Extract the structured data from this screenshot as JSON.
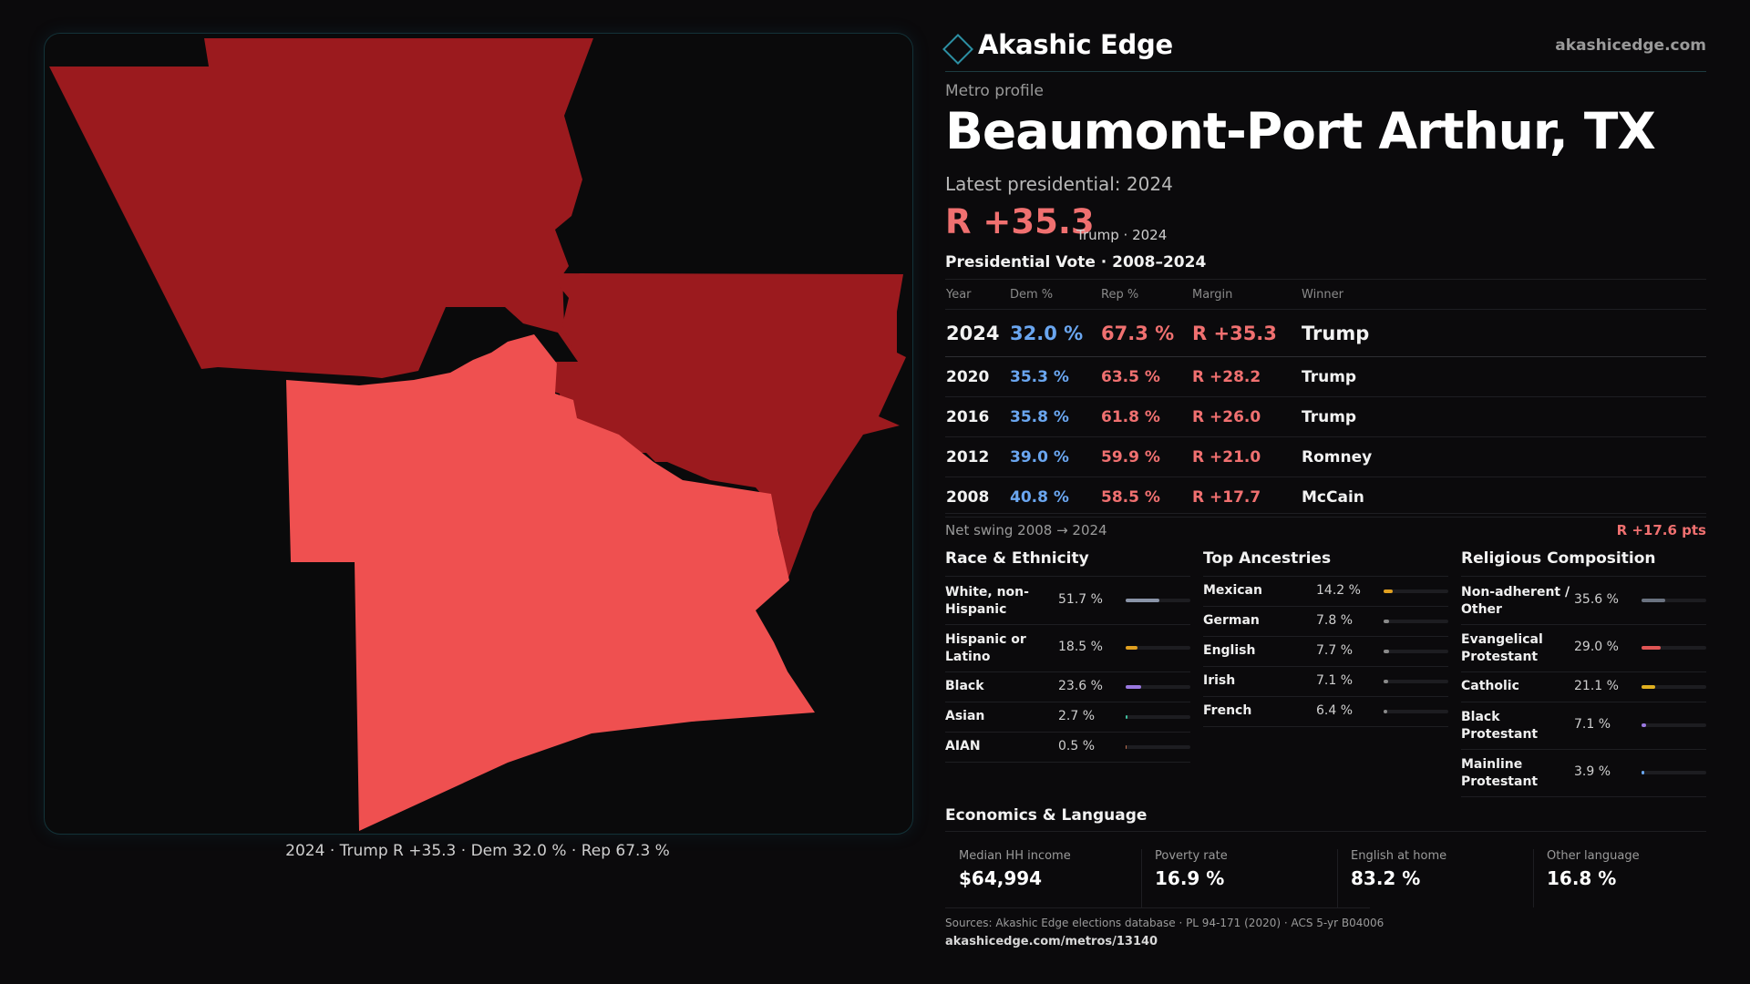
{
  "caption": "2024 · Trump R +35.3 · Dem 32.0 % · Rep 67.3 %",
  "map": {
    "colors": {
      "strong_rep": "#9b1a1e",
      "lean_rep": "#ef5050",
      "background": "#0a0a0b"
    },
    "regions": [
      {
        "name": "county-north-west",
        "shade": "strong_rep"
      },
      {
        "name": "county-east",
        "shade": "strong_rep"
      },
      {
        "name": "county-south",
        "shade": "lean_rep"
      }
    ]
  },
  "brand": {
    "name": "Akashic Edge",
    "url": "akashicedge.com"
  },
  "profile": {
    "kicker": "Metro profile",
    "title": "Beaumont-Port Arthur, TX",
    "latest": "Latest presidential: 2024",
    "margin": "R +35.3",
    "margin_sub": "Trump · 2024"
  },
  "votes": {
    "title": "Presidential Vote · 2008–2024",
    "headers": {
      "year": "Year",
      "dem": "Dem %",
      "rep": "Rep %",
      "margin": "Margin",
      "winner": "Winner"
    },
    "rows": [
      {
        "year": "2024",
        "dem": "32.0 %",
        "rep": "67.3 %",
        "margin": "R +35.3",
        "winner": "Trump"
      },
      {
        "year": "2020",
        "dem": "35.3 %",
        "rep": "63.5 %",
        "margin": "R +28.2",
        "winner": "Trump"
      },
      {
        "year": "2016",
        "dem": "35.8 %",
        "rep": "61.8 %",
        "margin": "R +26.0",
        "winner": "Trump"
      },
      {
        "year": "2012",
        "dem": "39.0 %",
        "rep": "59.9 %",
        "margin": "R +21.0",
        "winner": "Romney"
      },
      {
        "year": "2008",
        "dem": "40.8 %",
        "rep": "58.5 %",
        "margin": "R +17.7",
        "winner": "McCain"
      }
    ],
    "swing_label": "Net swing 2008 → 2024",
    "swing_value": "R +17.6 pts"
  },
  "race": {
    "title": "Race & Ethnicity",
    "items": [
      {
        "label": "White, non-Hispanic",
        "value": "51.7 %",
        "fraction": 0.517,
        "color": "#8a94a8"
      },
      {
        "label": "Hispanic or Latino",
        "value": "18.5 %",
        "fraction": 0.185,
        "color": "#e0a020"
      },
      {
        "label": "Black",
        "value": "23.6 %",
        "fraction": 0.236,
        "color": "#9a78e0"
      },
      {
        "label": "Asian",
        "value": "2.7 %",
        "fraction": 0.027,
        "color": "#40c0a0"
      },
      {
        "label": "AIAN",
        "value": "0.5 %",
        "fraction": 0.005,
        "color": "#c07050"
      }
    ]
  },
  "ancestry": {
    "title": "Top Ancestries",
    "items": [
      {
        "label": "Mexican",
        "value": "14.2 %",
        "fraction": 0.142,
        "color": "#e0a020"
      },
      {
        "label": "German",
        "value": "7.8 %",
        "fraction": 0.078,
        "color": "#8a8a8a"
      },
      {
        "label": "English",
        "value": "7.7 %",
        "fraction": 0.077,
        "color": "#8a8a8a"
      },
      {
        "label": "Irish",
        "value": "7.1 %",
        "fraction": 0.071,
        "color": "#8a8a8a"
      },
      {
        "label": "French",
        "value": "6.4 %",
        "fraction": 0.064,
        "color": "#8a8a8a"
      }
    ]
  },
  "religion": {
    "title": "Religious Composition",
    "items": [
      {
        "label": "Non-adherent / Other",
        "value": "35.6 %",
        "fraction": 0.356,
        "color": "#6a7280"
      },
      {
        "label": "Evangelical Protestant",
        "value": "29.0 %",
        "fraction": 0.29,
        "color": "#e05555"
      },
      {
        "label": "Catholic",
        "value": "21.1 %",
        "fraction": 0.211,
        "color": "#e0b020"
      },
      {
        "label": "Black Protestant",
        "value": "7.1 %",
        "fraction": 0.071,
        "color": "#9a78e0"
      },
      {
        "label": "Mainline Protestant",
        "value": "3.9 %",
        "fraction": 0.039,
        "color": "#6aa6f0"
      }
    ]
  },
  "economics": {
    "title": "Economics & Language",
    "items": [
      {
        "label": "Median HH income",
        "value": "$64,994"
      },
      {
        "label": "Poverty rate",
        "value": "16.9 %"
      },
      {
        "label": "English at home",
        "value": "83.2 %"
      },
      {
        "label": "Other language",
        "value": "16.8 %"
      }
    ]
  },
  "sources": "Sources: Akashic Edge elections database · PL 94-171 (2020) · ACS 5-yr B04006",
  "source_url": "akashicedge.com/metros/13140"
}
